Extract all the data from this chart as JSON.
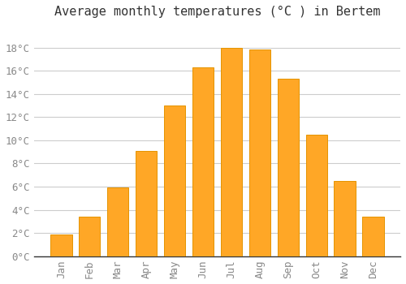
{
  "title": "Average monthly temperatures (°C ) in Bertem",
  "months": [
    "Jan",
    "Feb",
    "Mar",
    "Apr",
    "May",
    "Jun",
    "Jul",
    "Aug",
    "Sep",
    "Oct",
    "Nov",
    "Dec"
  ],
  "values": [
    1.9,
    3.4,
    5.9,
    9.1,
    13.0,
    16.3,
    18.0,
    17.8,
    15.3,
    10.5,
    6.5,
    3.4
  ],
  "bar_color": "#FFA726",
  "bar_edge_color": "#E59400",
  "background_color": "#FFFFFF",
  "grid_color": "#CCCCCC",
  "ylim": [
    0,
    20
  ],
  "yticks": [
    0,
    2,
    4,
    6,
    8,
    10,
    12,
    14,
    16,
    18
  ],
  "title_fontsize": 11,
  "tick_fontsize": 9,
  "tick_color": "#888888",
  "font_family": "monospace"
}
